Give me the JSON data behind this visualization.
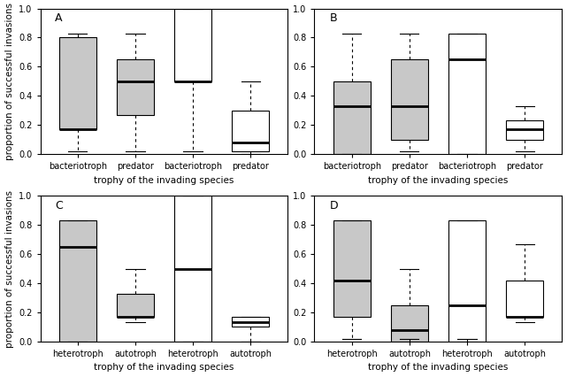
{
  "panels": [
    "A",
    "B",
    "C",
    "D"
  ],
  "figsize": [
    6.41,
    4.26
  ],
  "dpi": 100,
  "ylabel": "proportion of successful invasions",
  "xlabel": "trophy of the invading species",
  "ylim": [
    0.0,
    1.0
  ],
  "yticks": [
    0.0,
    0.2,
    0.4,
    0.6,
    0.8,
    1.0
  ],
  "background_color": "#ffffff",
  "gray_color": "#c8c8c8",
  "white_color": "#ffffff",
  "panel_label_fontsize": 9,
  "axis_label_fontsize": 7.5,
  "tick_label_fontsize": 7,
  "A": {
    "xtick_labels": [
      "bacteriotroph",
      "predator",
      "bacteriotroph",
      "predator"
    ],
    "colors": [
      "gray",
      "gray",
      "white",
      "white"
    ],
    "boxes": [
      {
        "whislo": 0.02,
        "q1": 0.17,
        "med": 0.17,
        "q3": 0.8,
        "whishi": 0.83
      },
      {
        "whislo": 0.02,
        "q1": 0.27,
        "med": 0.5,
        "q3": 0.65,
        "whishi": 0.83
      },
      {
        "whislo": 0.02,
        "q1": 0.5,
        "med": 0.5,
        "q3": 1.0,
        "whishi": 1.0
      },
      {
        "whislo": 0.0,
        "q1": 0.02,
        "med": 0.08,
        "q3": 0.3,
        "whishi": 0.5
      }
    ]
  },
  "B": {
    "xtick_labels": [
      "bacteriotroph",
      "predator",
      "bacteriotroph",
      "predator"
    ],
    "colors": [
      "gray",
      "gray",
      "white",
      "white"
    ],
    "boxes": [
      {
        "whislo": 0.0,
        "q1": 0.0,
        "med": 0.33,
        "q3": 0.5,
        "whishi": 0.83
      },
      {
        "whislo": 0.02,
        "q1": 0.1,
        "med": 0.33,
        "q3": 0.65,
        "whishi": 0.83
      },
      {
        "whislo": 0.0,
        "q1": 0.0,
        "med": 0.65,
        "q3": 0.83,
        "whishi": 0.83
      },
      {
        "whislo": 0.02,
        "q1": 0.1,
        "med": 0.17,
        "q3": 0.23,
        "whishi": 0.33
      }
    ]
  },
  "C": {
    "xtick_labels": [
      "heterotroph",
      "autotroph",
      "heterotroph",
      "autotroph"
    ],
    "colors": [
      "gray",
      "gray",
      "white",
      "white"
    ],
    "boxes": [
      {
        "whislo": 0.0,
        "q1": 0.0,
        "med": 0.65,
        "q3": 0.83,
        "whishi": 0.83
      },
      {
        "whislo": 0.13,
        "q1": 0.17,
        "med": 0.17,
        "q3": 0.33,
        "whishi": 0.5
      },
      {
        "whislo": 0.0,
        "q1": 0.0,
        "med": 0.5,
        "q3": 1.0,
        "whishi": 1.0
      },
      {
        "whislo": 0.0,
        "q1": 0.1,
        "med": 0.13,
        "q3": 0.17,
        "whishi": 0.17
      }
    ]
  },
  "D": {
    "xtick_labels": [
      "heterotroph",
      "autotroph",
      "heterotroph",
      "autotroph"
    ],
    "colors": [
      "gray",
      "gray",
      "white",
      "white"
    ],
    "boxes": [
      {
        "whislo": 0.02,
        "q1": 0.17,
        "med": 0.42,
        "q3": 0.83,
        "whishi": 0.83
      },
      {
        "whislo": 0.02,
        "q1": 0.0,
        "med": 0.08,
        "q3": 0.25,
        "whishi": 0.5
      },
      {
        "whislo": 0.02,
        "q1": 0.0,
        "med": 0.25,
        "q3": 0.83,
        "whishi": 0.83
      },
      {
        "whislo": 0.13,
        "q1": 0.17,
        "med": 0.17,
        "q3": 0.42,
        "whishi": 0.67
      }
    ]
  }
}
